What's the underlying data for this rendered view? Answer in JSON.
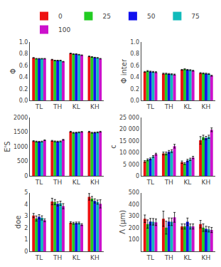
{
  "chart_data": [
    {
      "type": "bar",
      "categories": [
        "TL",
        "TH",
        "KL",
        "KH"
      ],
      "ylabel": "Φ",
      "ylim": [
        0,
        1
      ],
      "yticks": [
        {
          "value": 0,
          "label": "0.0"
        },
        0.2,
        0.4,
        0.6,
        0.8,
        {
          "value": 1,
          "label": "1.0"
        }
      ],
      "grid": false,
      "series": [
        {
          "name": "0",
          "color": "#ee1111",
          "values": [
            0.73,
            0.7,
            0.805,
            0.755
          ],
          "errors": [
            0.005,
            0.005,
            0.005,
            0.005
          ]
        },
        {
          "name": "25",
          "color": "#22cc22",
          "values": [
            0.715,
            0.685,
            0.795,
            0.745
          ],
          "errors": [
            0.005,
            0.005,
            0.005,
            0.005
          ]
        },
        {
          "name": "50",
          "color": "#1111ee",
          "values": [
            0.715,
            0.685,
            0.795,
            0.735
          ],
          "errors": [
            0.005,
            0.005,
            0.005,
            0.005
          ]
        },
        {
          "name": "75",
          "color": "#11bbbb",
          "values": [
            0.715,
            0.685,
            0.785,
            0.73
          ],
          "errors": [
            0.005,
            0.005,
            0.005,
            0.005
          ]
        },
        {
          "name": "100",
          "color": "#cc11cc",
          "values": [
            0.715,
            0.665,
            0.775,
            0.715
          ],
          "errors": [
            0.005,
            0.005,
            0.005,
            0.005
          ]
        }
      ]
    },
    {
      "type": "bar",
      "categories": [
        "TL",
        "TH",
        "KL",
        "KH"
      ],
      "ylabel": "Φ inter",
      "ylim": [
        0,
        1
      ],
      "yticks": [
        {
          "value": 0,
          "label": "0.0"
        },
        0.2,
        0.4,
        0.6,
        0.8,
        {
          "value": 1,
          "label": "1.0"
        }
      ],
      "grid": false,
      "series": [
        {
          "name": "0",
          "color": "#ee1111",
          "values": [
            0.49,
            0.46,
            0.525,
            0.47
          ],
          "errors": [
            0.008,
            0.008,
            0.008,
            0.008
          ]
        },
        {
          "name": "25",
          "color": "#22cc22",
          "values": [
            0.505,
            0.46,
            0.535,
            0.465
          ],
          "errors": [
            0.008,
            0.008,
            0.008,
            0.008
          ]
        },
        {
          "name": "50",
          "color": "#1111ee",
          "values": [
            0.495,
            0.455,
            0.525,
            0.46
          ],
          "errors": [
            0.008,
            0.008,
            0.008,
            0.008
          ]
        },
        {
          "name": "75",
          "color": "#11bbbb",
          "values": [
            0.49,
            0.45,
            0.52,
            0.455
          ],
          "errors": [
            0.008,
            0.008,
            0.008,
            0.008
          ]
        },
        {
          "name": "100",
          "color": "#cc11cc",
          "values": [
            0.485,
            0.445,
            0.51,
            0.425
          ],
          "errors": [
            0.008,
            0.008,
            0.008,
            0.008
          ]
        }
      ]
    },
    {
      "type": "bar",
      "categories": [
        "TL",
        "TH",
        "KL",
        "KH"
      ],
      "ylabel": "E'S",
      "ylim": [
        0,
        2000
      ],
      "yticks": [
        0,
        500,
        1000,
        1500,
        2000
      ],
      "grid": false,
      "series": [
        {
          "name": "0",
          "color": "#ee1111",
          "values": [
            1190,
            1200,
            1510,
            1510
          ],
          "errors": [
            15,
            15,
            15,
            15
          ]
        },
        {
          "name": "25",
          "color": "#22cc22",
          "values": [
            1175,
            1180,
            1475,
            1475
          ],
          "errors": [
            15,
            15,
            15,
            15
          ]
        },
        {
          "name": "50",
          "color": "#1111ee",
          "values": [
            1170,
            1175,
            1480,
            1480
          ],
          "errors": [
            15,
            15,
            15,
            15
          ]
        },
        {
          "name": "75",
          "color": "#11bbbb",
          "values": [
            1175,
            1180,
            1490,
            1490
          ],
          "errors": [
            15,
            15,
            15,
            15
          ]
        },
        {
          "name": "100",
          "color": "#cc11cc",
          "values": [
            1220,
            1235,
            1505,
            1510
          ],
          "errors": [
            15,
            15,
            15,
            15
          ]
        }
      ]
    },
    {
      "type": "bar",
      "categories": [
        "TL",
        "TH",
        "KL",
        "KH"
      ],
      "ylabel": "c",
      "ylim": [
        0,
        25000
      ],
      "yticks": [
        0,
        {
          "value": 5000,
          "label": "5 000"
        },
        {
          "value": 10000,
          "label": "10 000"
        },
        {
          "value": 15000,
          "label": "15 000"
        },
        {
          "value": 20000,
          "label": "20 000"
        },
        {
          "value": 25000,
          "label": "25 000"
        }
      ],
      "grid": false,
      "legend": "top",
      "series": [
        {
          "name": "0",
          "color": "#ee1111",
          "values": [
            6200,
            9600,
            5900,
            15200
          ],
          "errors": [
            400,
            600,
            500,
            1600
          ]
        },
        {
          "name": "25",
          "color": "#22cc22",
          "values": [
            6900,
            9600,
            5300,
            16500
          ],
          "errors": [
            400,
            600,
            400,
            900
          ]
        },
        {
          "name": "50",
          "color": "#1111ee",
          "values": [
            7300,
            10300,
            6600,
            16200
          ],
          "errors": [
            400,
            600,
            500,
            700
          ]
        },
        {
          "name": "75",
          "color": "#11bbbb",
          "values": [
            8300,
            10600,
            7100,
            16700
          ],
          "errors": [
            400,
            600,
            500,
            700
          ]
        },
        {
          "name": "100",
          "color": "#cc11cc",
          "values": [
            9300,
            12700,
            7900,
            19700
          ],
          "errors": [
            400,
            800,
            500,
            800
          ]
        }
      ]
    },
    {
      "type": "bar",
      "categories": [
        "TL",
        "TH",
        "KL",
        "KH"
      ],
      "ylabel": "doe",
      "ylim": [
        0,
        5
      ],
      "yticks": [
        0,
        1,
        2,
        3,
        4,
        5
      ],
      "grid": false,
      "series": [
        {
          "name": "0",
          "color": "#ee1111",
          "values": [
            3.05,
            4.25,
            2.45,
            4.65
          ],
          "errors": [
            0.18,
            0.28,
            0.08,
            0.28
          ]
        },
        {
          "name": "25",
          "color": "#22cc22",
          "values": [
            2.8,
            4.2,
            2.4,
            4.5
          ],
          "errors": [
            0.22,
            0.22,
            0.08,
            0.18
          ]
        },
        {
          "name": "50",
          "color": "#1111ee",
          "values": [
            2.95,
            4.05,
            2.42,
            4.3
          ],
          "errors": [
            0.18,
            0.18,
            0.08,
            0.18
          ]
        },
        {
          "name": "75",
          "color": "#11bbbb",
          "values": [
            2.85,
            4.1,
            2.42,
            4.2
          ],
          "errors": [
            0.18,
            0.18,
            0.08,
            0.18
          ]
        },
        {
          "name": "100",
          "color": "#cc11cc",
          "values": [
            2.65,
            3.85,
            2.28,
            4.05
          ],
          "errors": [
            0.12,
            0.22,
            0.08,
            0.35
          ]
        }
      ]
    },
    {
      "type": "bar",
      "categories": [
        "TL",
        "TH",
        "KL",
        "KH"
      ],
      "ylabel": "Λ (μm)",
      "ylim": [
        0,
        500
      ],
      "yticks": [
        100,
        200,
        300,
        400,
        500
      ],
      "grid": false,
      "series": [
        {
          "name": "0",
          "color": "#ee1111",
          "values": [
            278,
            278,
            212,
            232
          ],
          "errors": [
            32,
            65,
            22,
            32
          ]
        },
        {
          "name": "25",
          "color": "#22cc22",
          "values": [
            233,
            202,
            212,
            202
          ],
          "errors": [
            35,
            55,
            22,
            32
          ]
        },
        {
          "name": "50",
          "color": "#1111ee",
          "values": [
            253,
            253,
            252,
            192
          ],
          "errors": [
            28,
            32,
            32,
            22
          ]
        },
        {
          "name": "75",
          "color": "#11bbbb",
          "values": [
            252,
            252,
            212,
            187
          ],
          "errors": [
            28,
            32,
            22,
            22
          ]
        },
        {
          "name": "100",
          "color": "#cc11cc",
          "values": [
            248,
            290,
            212,
            182
          ],
          "errors": [
            28,
            42,
            22,
            22
          ]
        }
      ]
    }
  ]
}
